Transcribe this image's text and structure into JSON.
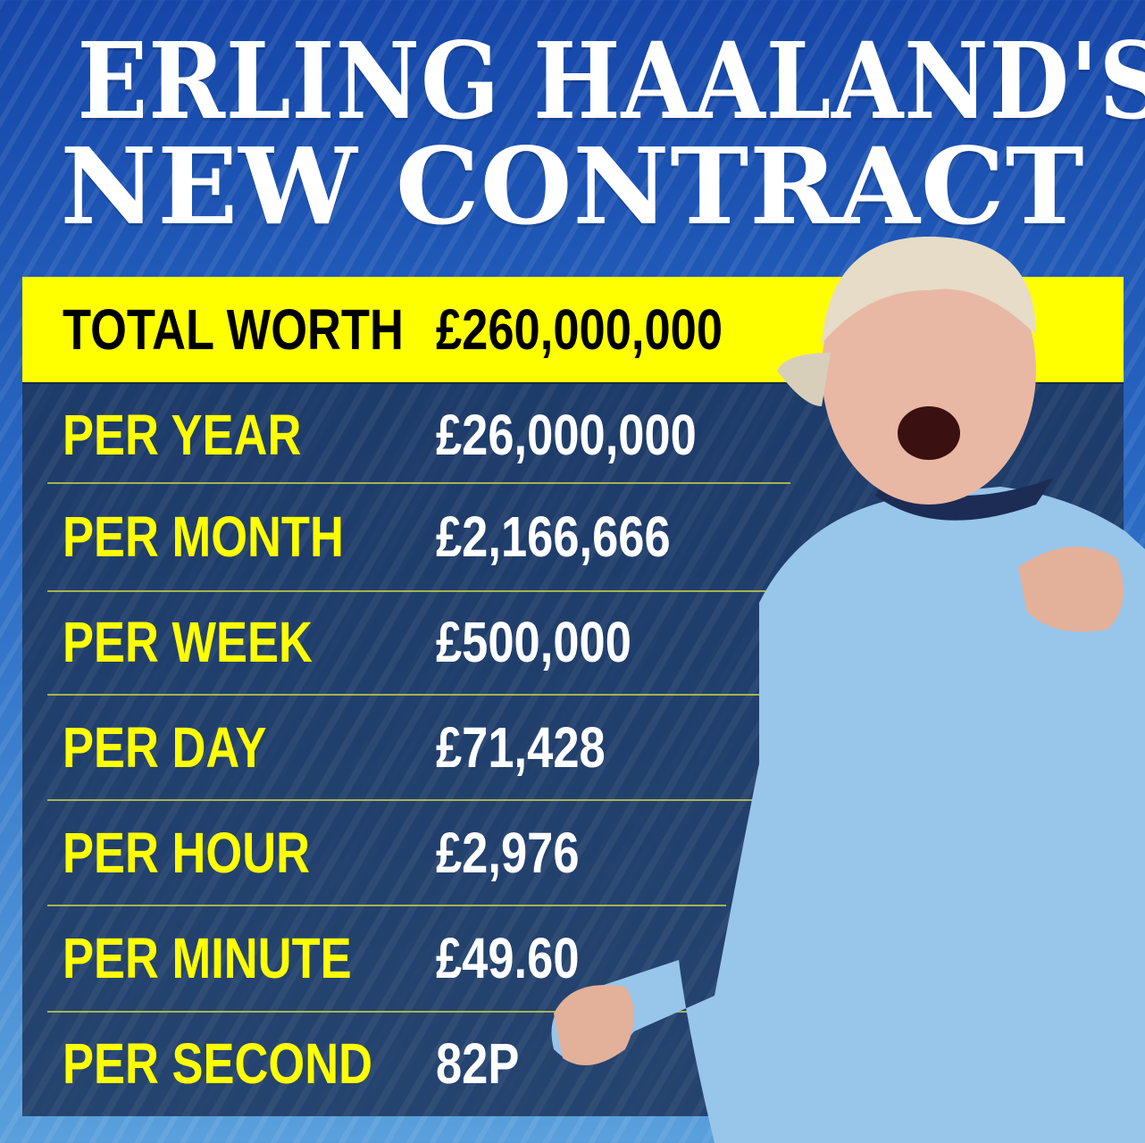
{
  "title": {
    "line1": "ERLING HAALAND'S",
    "line2": "NEW CONTRACT"
  },
  "total": {
    "label": "TOTAL WORTH",
    "value": "£260,000,000"
  },
  "rows": [
    {
      "label": "PER YEAR",
      "value": "£26,000,000"
    },
    {
      "label": "PER MONTH",
      "value": "£2,166,666"
    },
    {
      "label": "PER WEEK",
      "value": "£500,000"
    },
    {
      "label": "PER DAY",
      "value": "£71,428"
    },
    {
      "label": "PER HOUR",
      "value": "£2,976"
    },
    {
      "label": "PER MINUTE",
      "value": "£49.60"
    },
    {
      "label": "PER SECOND",
      "value": "82P"
    }
  ],
  "colors": {
    "highlight": "#ffff00",
    "label": "#ffff00",
    "value": "#ffffff",
    "panel": "#1e375f",
    "background": "#1546a8",
    "shirt": "#98c5ea"
  }
}
